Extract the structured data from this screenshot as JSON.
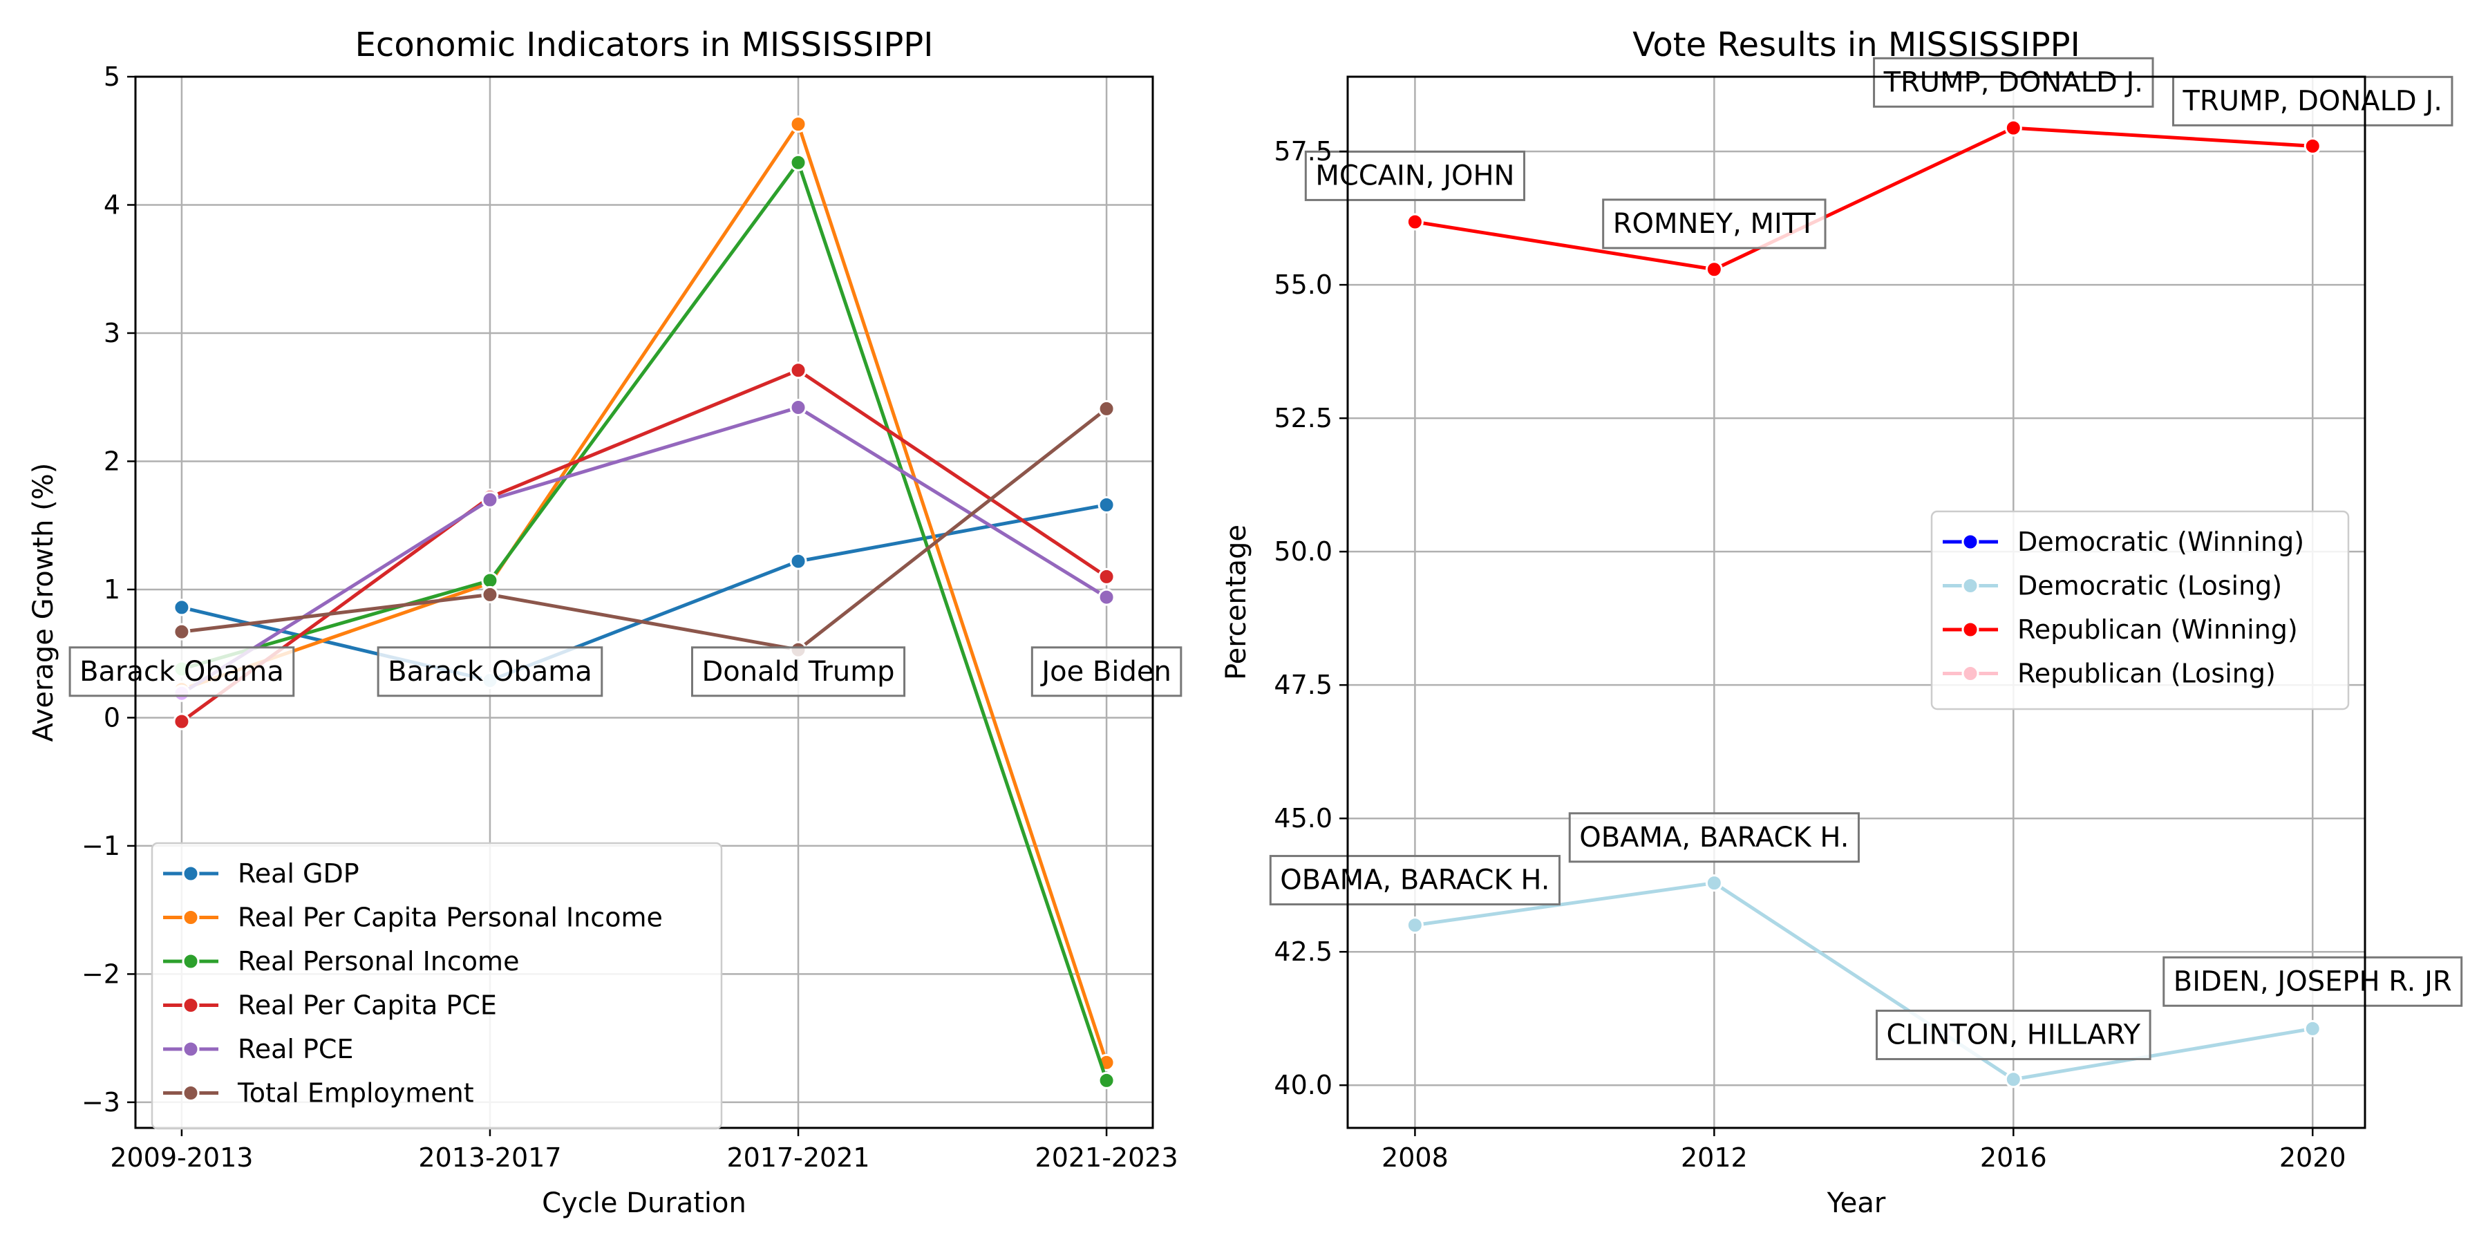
{
  "chart_data": [
    {
      "type": "line",
      "title": "Economic Indicators in MISSISSIPPI",
      "xlabel": "Cycle Duration",
      "ylabel": "Average Growth (%)",
      "categories": [
        "2009-2013",
        "2013-2017",
        "2017-2021",
        "2021-2023"
      ],
      "ylim": [
        -3.2,
        5.0
      ],
      "yticks": [
        -3,
        -2,
        -1,
        0,
        1,
        2,
        3,
        4,
        5
      ],
      "ytick_labels": [
        "−3",
        "−2",
        "−1",
        "0",
        "1",
        "2",
        "3",
        "4",
        "5"
      ],
      "grid": true,
      "legend_position": "lower-left",
      "series": [
        {
          "name": "Real GDP",
          "color": "#1f77b4",
          "values": [
            0.86,
            0.29,
            1.22,
            1.66
          ],
          "point_colors": [
            "#1f77b4",
            "#add8e6",
            "#1f77b4",
            "#1f77b4"
          ]
        },
        {
          "name": "Real Per Capita Personal Income",
          "color": "#ff7f0e",
          "values": [
            0.22,
            1.05,
            4.63,
            -2.69
          ]
        },
        {
          "name": "Real Personal Income",
          "color": "#2ca02c",
          "values": [
            0.38,
            1.07,
            4.33,
            -2.83
          ],
          "point_colors": [
            "#90ee90",
            "#2ca02c",
            "#2ca02c",
            "#2ca02c"
          ]
        },
        {
          "name": "Real Per Capita PCE",
          "color": "#d62728",
          "values": [
            -0.03,
            1.72,
            2.71,
            1.1
          ]
        },
        {
          "name": "Real PCE",
          "color": "#9467bd",
          "values": [
            0.19,
            1.7,
            2.42,
            0.94
          ],
          "point_colors": [
            "#e0b0ff",
            "#9467bd",
            "#9467bd",
            "#9467bd"
          ]
        },
        {
          "name": "Total Employment",
          "color": "#8c564b",
          "values": [
            0.67,
            0.96,
            0.53,
            2.41
          ]
        }
      ],
      "annotations": [
        {
          "text": "Barack Obama",
          "x_index": 0,
          "y": 0.3
        },
        {
          "text": "Barack Obama",
          "x_index": 1,
          "y": 0.3
        },
        {
          "text": "Donald Trump",
          "x_index": 2,
          "y": 0.3
        },
        {
          "text": "Joe Biden",
          "x_index": 3,
          "y": 0.3
        }
      ]
    },
    {
      "type": "line",
      "title": "Vote Results in MISSISSIPPI",
      "xlabel": "Year",
      "ylabel": "Percentage",
      "x": [
        2008,
        2012,
        2016,
        2020
      ],
      "xlim": [
        2007.1,
        2020.7
      ],
      "ylim": [
        39.2,
        58.9
      ],
      "yticks": [
        40.0,
        42.5,
        45.0,
        47.5,
        50.0,
        52.5,
        55.0,
        57.5
      ],
      "ytick_labels": [
        "40.0",
        "42.5",
        "45.0",
        "47.5",
        "50.0",
        "52.5",
        "55.0",
        "57.5"
      ],
      "xtick_labels": [
        "2008",
        "2012",
        "2016",
        "2020"
      ],
      "grid": true,
      "legend_position": "center-right",
      "legend": [
        {
          "name": "Democratic (Winning)",
          "color": "#0000ff"
        },
        {
          "name": "Democratic (Losing)",
          "color": "#add8e6"
        },
        {
          "name": "Republican (Winning)",
          "color": "#ff0000"
        },
        {
          "name": "Republican (Losing)",
          "color": "#ffc0cb"
        }
      ],
      "series": [
        {
          "name": "Republican (Winning)",
          "color": "#ff0000",
          "values": [
            56.18,
            55.29,
            57.94,
            57.6
          ]
        },
        {
          "name": "Democratic (Losing)",
          "color": "#add8e6",
          "values": [
            43.0,
            43.79,
            40.11,
            41.06
          ]
        }
      ],
      "annotations": [
        {
          "text": "MCCAIN, JOHN",
          "x": 2008,
          "y": 56.9
        },
        {
          "text": "ROMNEY, MITT",
          "x": 2012,
          "y": 56.0
        },
        {
          "text": "TRUMP, DONALD J.",
          "x": 2016,
          "y": 58.65
        },
        {
          "text": "TRUMP, DONALD J.",
          "x": 2020,
          "y": 58.3
        },
        {
          "text": "OBAMA, BARACK H.",
          "x": 2008,
          "y": 43.7
        },
        {
          "text": "OBAMA, BARACK H.",
          "x": 2012,
          "y": 44.5
        },
        {
          "text": "CLINTON, HILLARY",
          "x": 2016,
          "y": 40.8
        },
        {
          "text": "BIDEN, JOSEPH R. JR",
          "x": 2020,
          "y": 41.8
        }
      ]
    }
  ]
}
